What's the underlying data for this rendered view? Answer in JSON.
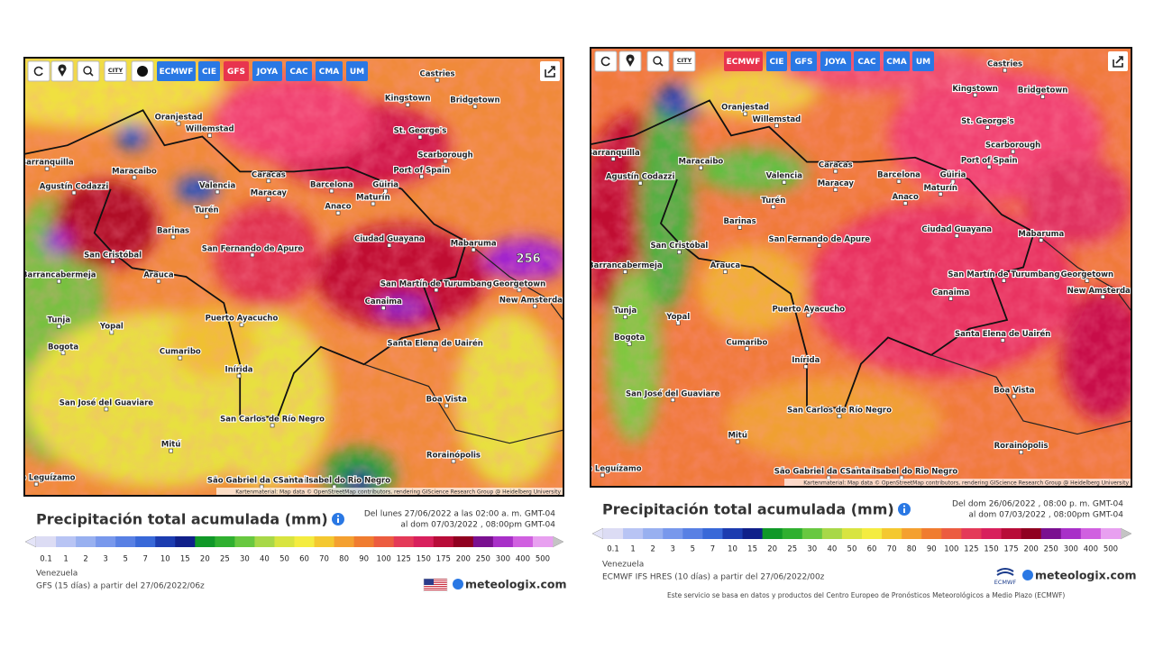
{
  "panels": [
    {
      "toolbar": {
        "city_icon": "CITY",
        "models": [
          "ECMWF",
          "CIE",
          "GFS",
          "JOYA",
          "CAC",
          "CMA",
          "UM"
        ],
        "active": "GFS"
      },
      "map": {
        "cities": [
          "Castries",
          "Kingstown",
          "Bridgetown",
          "St. George's",
          "Oranjestad",
          "Willemstad",
          "Barranquilla",
          "Maracaibo",
          "Caracas",
          "Valencia",
          "Maracay",
          "Barcelona",
          "Port of Spain",
          "Scarborough",
          "Güiria",
          "Maturín",
          "Agustín Codazzi",
          "Turén",
          "Anaco",
          "Barinas",
          "San Cristóbal",
          "San Fernando de Apure",
          "Ciudad Guayana",
          "Mabaruma",
          "Barrancabermeja",
          "Arauca",
          "Canaima",
          "San Martín de Turumbang",
          "Georgetown",
          "New Amsterdam",
          "Tunja",
          "Yopal",
          "Puerto Ayacucho",
          "Bogota",
          "Santa Elena de Uairén",
          "Cumaribo",
          "Inírida",
          "Boa Vista",
          "San José del Guaviare",
          "San Carlos de Río Negro",
          "Mitú",
          "Rorainópolis",
          "São Gabriel da Cachoeira",
          "Santa Isabel do Rio Negro",
          "Puerto Leguízamo"
        ],
        "peak_label": "256",
        "attribution": "Kartenmaterial: Map data © OpenStreetMap contributors, rendering GIScience Research Group @ Heidelberg University"
      },
      "legend": {
        "title": "Precipitación total acumulada (mm)",
        "period": [
          "Del lunes 27/06/2022 a las 02:00 a. m. GMT-04",
          "al dom 07/03/2022 , 08:00pm GMT-04"
        ],
        "scale_labels": [
          "0.1",
          "1",
          "2",
          "3",
          "5",
          "7",
          "10",
          "15",
          "20",
          "25",
          "30",
          "40",
          "50",
          "60",
          "70",
          "80",
          "90",
          "100",
          "125",
          "150",
          "175",
          "200",
          "250",
          "300",
          "400",
          "500"
        ],
        "scale_colors": [
          "#dcdcf4",
          "#b8c4f4",
          "#98b0f0",
          "#7898ec",
          "#5880e4",
          "#3868d8",
          "#1c3cb0",
          "#10208a",
          "#109828",
          "#30b030",
          "#68c840",
          "#a8d848",
          "#d8e440",
          "#f4ec40",
          "#f4c830",
          "#f4a030",
          "#f07c30",
          "#ec5c40",
          "#e43a58",
          "#d8205c",
          "#b80c38",
          "#900020",
          "#7a1090",
          "#a830c8",
          "#d060e0",
          "#e8a0f0"
        ]
      },
      "footer": {
        "region": "Venezuela",
        "model_run": "GFS (15 días) a partir del 27/06/2022/06z",
        "brand": "meteologix.com"
      }
    },
    {
      "toolbar": {
        "city_icon": "CITY",
        "models": [
          "ECMWF",
          "CIE",
          "GFS",
          "JOYA",
          "CAC",
          "CMA",
          "UM"
        ],
        "active": "ECMWF"
      },
      "map": {
        "cities": [
          "Castries",
          "Kingstown",
          "Bridgetown",
          "St. George's",
          "Oranjestad",
          "Willemstad",
          "Barranquilla",
          "Maracaibo",
          "Caracas",
          "Valencia",
          "Maracay",
          "Barcelona",
          "Port of Spain",
          "Scarborough",
          "Güiria",
          "Maturín",
          "Agustín Codazzi",
          "Turén",
          "Anaco",
          "Barinas",
          "San Cristóbal",
          "San Fernando de Apure",
          "Ciudad Guayana",
          "Mabaruma",
          "Barrancabermeja",
          "Arauca",
          "Canaima",
          "San Martín de Turumbang",
          "Georgetown",
          "New Amsterdam",
          "Tunja",
          "Yopal",
          "Puerto Ayacucho",
          "Bogota",
          "Santa Elena de Uairén",
          "Cumaribo",
          "Inírida",
          "Boa Vista",
          "San José del Guaviare",
          "San Carlos de Río Negro",
          "Mitú",
          "Rorainópolis",
          "São Gabriel da Cachoeira",
          "Santa Isabel do Rio Negro",
          "Puerto Leguízamo"
        ],
        "attribution": "Kartenmaterial: Map data © OpenStreetMap contributors, rendering GIScience Research Group @ Heidelberg University"
      },
      "legend": {
        "title": "Precipitación total acumulada (mm)",
        "period": [
          "Del dom 26/06/2022 , 08:00 p. m. GMT-04",
          "al dom 07/03/2022 , 08:00pm GMT-04"
        ],
        "scale_labels": [
          "0.1",
          "1",
          "2",
          "3",
          "5",
          "7",
          "10",
          "15",
          "20",
          "25",
          "30",
          "40",
          "50",
          "60",
          "70",
          "80",
          "90",
          "100",
          "125",
          "150",
          "175",
          "200",
          "250",
          "300",
          "400",
          "500"
        ],
        "scale_colors": [
          "#dcdcf4",
          "#b8c4f4",
          "#98b0f0",
          "#7898ec",
          "#5880e4",
          "#3868d8",
          "#1c3cb0",
          "#10208a",
          "#109828",
          "#30b030",
          "#68c840",
          "#a8d848",
          "#d8e440",
          "#f4ec40",
          "#f4c830",
          "#f4a030",
          "#f07c30",
          "#ec5c40",
          "#e43a58",
          "#d8205c",
          "#b80c38",
          "#900020",
          "#7a1090",
          "#a830c8",
          "#d060e0",
          "#e8a0f0"
        ]
      },
      "footer": {
        "region": "Venezuela",
        "model_run": "ECMWF IFS HRES (10 días) a partir del 27/06/2022/00z",
        "provider": "ECMWF",
        "brand": "meteologix.com",
        "note": "Este servicio se basa en datos y productos del Centro Europeo de Pronósticos Meteorológicos a Medio Plazo (ECMWF)"
      }
    }
  ]
}
